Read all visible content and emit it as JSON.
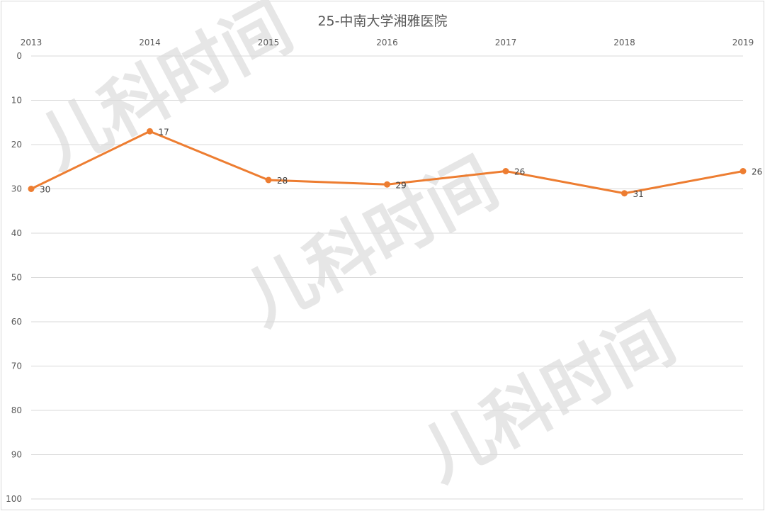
{
  "chart_data": {
    "type": "line",
    "title": "25-中南大学湘雅医院",
    "categories": [
      "2013",
      "2014",
      "2015",
      "2016",
      "2017",
      "2018",
      "2019"
    ],
    "values": [
      30,
      17,
      28,
      29,
      26,
      31,
      26
    ],
    "data_labels": true,
    "xaxis_position": "top",
    "yaxis_reversed": true,
    "ylim": [
      0,
      100
    ],
    "yticks": [
      0,
      10,
      20,
      30,
      40,
      50,
      60,
      70,
      80,
      90,
      100
    ],
    "grid": true,
    "legend": "none",
    "line_color": "#ed7d31"
  },
  "watermark": "儿科时间"
}
